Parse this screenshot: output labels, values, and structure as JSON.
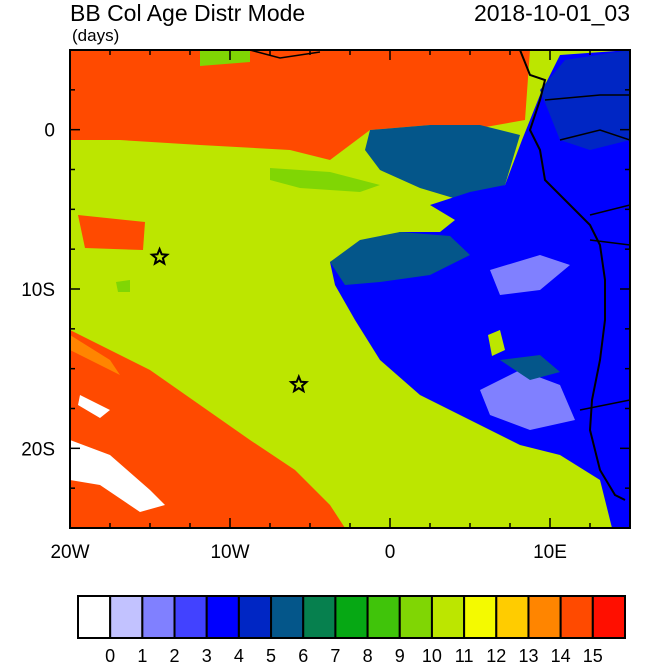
{
  "title": "BB Col Age Distr Mode",
  "units": "(days)",
  "timestamp": "2018-10-01_03",
  "map": {
    "lon_range": [
      -20,
      15
    ],
    "lat_range": [
      -25,
      5
    ],
    "x_ticks": [
      {
        "value": -20,
        "label": "20W"
      },
      {
        "value": -10,
        "label": "10W"
      },
      {
        "value": 0,
        "label": "0"
      },
      {
        "value": 10,
        "label": "10E"
      }
    ],
    "y_ticks": [
      {
        "value": 0,
        "label": "0"
      },
      {
        "value": -10,
        "label": "10S"
      },
      {
        "value": -20,
        "label": "20S"
      }
    ],
    "markers": [
      {
        "name": "star",
        "lon": -14.4,
        "lat": -8.0
      },
      {
        "name": "star",
        "lon": -5.7,
        "lat": -16.0
      }
    ]
  },
  "colorbar": {
    "labels": [
      "0",
      "1",
      "2",
      "3",
      "4",
      "5",
      "6",
      "7",
      "8",
      "9",
      "10",
      "11",
      "12",
      "13",
      "14",
      "15"
    ],
    "colors": [
      "#ffffff",
      "#c2c2ff",
      "#8080ff",
      "#4242ff",
      "#0000ff",
      "#0026c4",
      "#04568a",
      "#06804e",
      "#06a814",
      "#40c40a",
      "#80d604",
      "#bce600",
      "#f4fa00",
      "#ffcc00",
      "#ff8500",
      "#ff4a00",
      "#ff0f00"
    ]
  }
}
